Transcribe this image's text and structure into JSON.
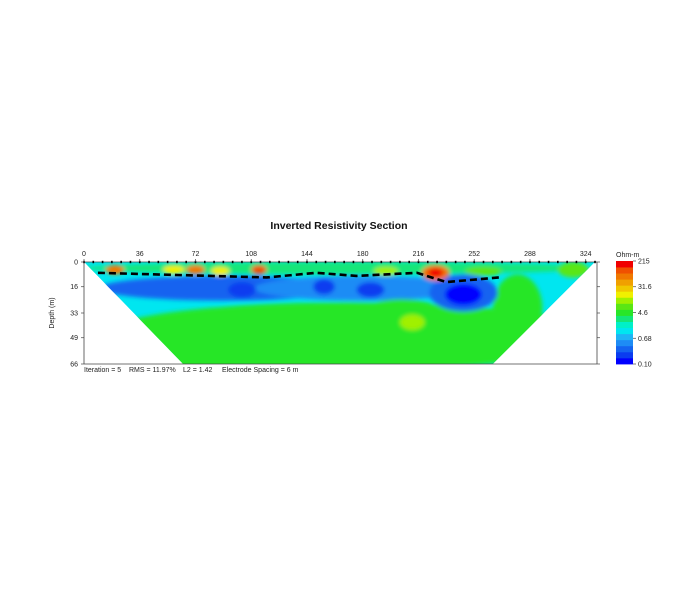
{
  "chart_data": {
    "type": "heatmap",
    "title": "Inverted Resistivity Section",
    "xlabel": "",
    "ylabel": "Depth (m)",
    "xlim": [
      0,
      330
    ],
    "ylim": [
      0,
      66
    ],
    "x_ticks": [
      "0",
      "36",
      "72",
      "108",
      "144",
      "180",
      "216",
      "252",
      "288",
      "324"
    ],
    "y_ticks": [
      "0",
      "16",
      "33",
      "49",
      "66"
    ],
    "colorbar": {
      "unit": "Ohm-m",
      "scale": "log",
      "range": [
        0.1,
        215
      ],
      "tick_labels": [
        "215",
        "31.6",
        "4.6",
        "0.68",
        "0.10"
      ],
      "colors": [
        "#0000ff",
        "#0a3cf0",
        "#1464f0",
        "#1e8cf5",
        "#1eb4f5",
        "#00e6f0",
        "#00f0c8",
        "#14e678",
        "#28e628",
        "#5ae614",
        "#a0f000",
        "#f0f000",
        "#f0c800",
        "#f0a000",
        "#f07800",
        "#f05000",
        "#f00000"
      ]
    },
    "annotation": {
      "iteration": "Iteration = 5",
      "rms": "RMS = 11.97%",
      "l2": "L2 = 1.42",
      "spacing": "Electrode Spacing = 6 m"
    },
    "section_polygon": [
      [
        0,
        0
      ],
      [
        330,
        0
      ],
      [
        264,
        66
      ],
      [
        64,
        66
      ]
    ],
    "background_value": 1.2,
    "features": [
      {
        "x": 170,
        "depth": 48,
        "rx": 160,
        "rd": 22,
        "value": 4.0
      },
      {
        "x": 80,
        "depth": 58,
        "rx": 40,
        "rd": 12,
        "value": 5.0
      },
      {
        "x": 280,
        "depth": 30,
        "rx": 16,
        "rd": 22,
        "value": 4.0
      },
      {
        "x": 90,
        "depth": 17,
        "rx": 80,
        "rd": 8,
        "value": 0.35
      },
      {
        "x": 180,
        "depth": 17,
        "rx": 70,
        "rd": 8,
        "value": 0.4
      },
      {
        "x": 245,
        "depth": 20,
        "rx": 22,
        "rd": 12,
        "value": 0.25
      },
      {
        "x": 245,
        "depth": 21,
        "rx": 12,
        "rd": 7,
        "value": 0.13
      },
      {
        "x": 205,
        "depth": 42,
        "rx": 36,
        "rd": 18,
        "value": 5.5
      },
      {
        "x": 212,
        "depth": 39,
        "rx": 8,
        "rd": 5,
        "value": 14
      },
      {
        "x": 102,
        "depth": 18,
        "rx": 9,
        "rd": 5,
        "value": 0.18
      },
      {
        "x": 155,
        "depth": 16,
        "rx": 7,
        "rd": 5,
        "value": 0.18
      },
      {
        "x": 185,
        "depth": 18,
        "rx": 9,
        "rd": 5,
        "value": 0.2
      },
      {
        "x": 165,
        "depth": 4,
        "rx": 165,
        "rd": 4,
        "value": 3.0
      },
      {
        "x": 20,
        "depth": 5,
        "rx": 6,
        "rd": 3,
        "value": 60
      },
      {
        "x": 58,
        "depth": 5,
        "rx": 7,
        "rd": 3,
        "value": 20
      },
      {
        "x": 72,
        "depth": 5,
        "rx": 6,
        "rd": 3,
        "value": 60
      },
      {
        "x": 88,
        "depth": 6,
        "rx": 6,
        "rd": 3,
        "value": 20
      },
      {
        "x": 113,
        "depth": 5,
        "rx": 5,
        "rd": 3,
        "value": 120
      },
      {
        "x": 195,
        "depth": 6,
        "rx": 8,
        "rd": 3,
        "value": 10
      },
      {
        "x": 227,
        "depth": 7,
        "rx": 9,
        "rd": 5,
        "value": 60
      },
      {
        "x": 227,
        "depth": 7,
        "rx": 5,
        "rd": 3,
        "value": 215
      },
      {
        "x": 258,
        "depth": 6,
        "rx": 12,
        "rd": 3,
        "value": 8
      },
      {
        "x": 316,
        "depth": 5,
        "rx": 10,
        "rd": 5,
        "value": 6
      }
    ],
    "interface_line": [
      [
        9,
        7
      ],
      [
        118,
        10
      ],
      [
        150,
        7
      ],
      [
        176,
        9
      ],
      [
        215,
        7
      ],
      [
        234,
        13
      ],
      [
        268,
        10
      ]
    ]
  }
}
